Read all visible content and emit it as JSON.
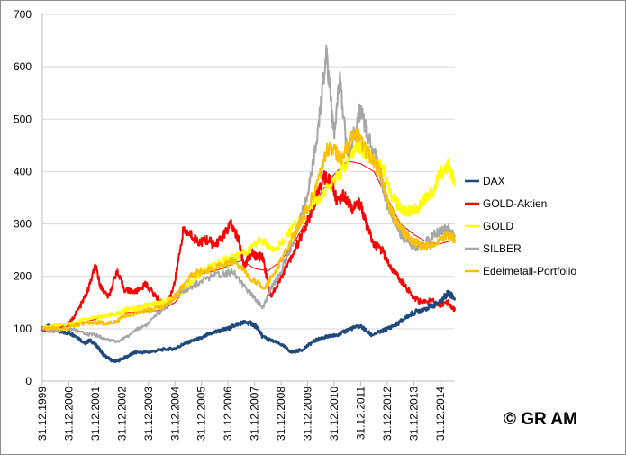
{
  "copyright": "© GR AM",
  "chart_data": {
    "type": "line",
    "title": "",
    "xlabel": "",
    "ylabel": "",
    "ylim": [
      0,
      700
    ],
    "yticks": [
      0,
      100,
      200,
      300,
      400,
      500,
      600,
      700
    ],
    "grid": true,
    "legend_position": "right",
    "categories": [
      "31.12.1999",
      "31.12.2000",
      "31.12.2001",
      "31.12.2002",
      "31.12.2003",
      "31.12.2004",
      "31.12.2005",
      "31.12.2006",
      "31.12.2007",
      "31.12.2008",
      "31.12.2009",
      "31.12.2010",
      "31.12.2011",
      "31.12.2012",
      "31.12.2013",
      "31.12.2014"
    ],
    "x_end": 15.55,
    "series": [
      {
        "name": "DAX",
        "color": "#1f497d",
        "x": [
          0,
          0.3,
          0.7,
          1,
          1.3,
          1.6,
          1.8,
          2.1,
          2.3,
          2.6,
          2.8,
          3.2,
          3.5,
          4,
          4.5,
          5,
          5.3,
          5.7,
          6,
          6.3,
          6.6,
          7,
          7.3,
          7.6,
          7.9,
          8.1,
          8.3,
          8.6,
          9,
          9.4,
          9.8,
          10.2,
          10.5,
          10.8,
          11,
          11.3,
          11.6,
          12,
          12.4,
          12.8,
          13,
          13.4,
          13.8,
          14.2,
          14.6,
          15,
          15.3,
          15.55
        ],
        "y": [
          100,
          105,
          93,
          92,
          85,
          72,
          78,
          65,
          50,
          40,
          38,
          47,
          55,
          55,
          60,
          62,
          70,
          78,
          82,
          90,
          95,
          100,
          108,
          112,
          110,
          102,
          85,
          78,
          70,
          55,
          60,
          75,
          82,
          85,
          87,
          92,
          100,
          105,
          88,
          95,
          100,
          110,
          125,
          135,
          142,
          150,
          170,
          158
        ]
      },
      {
        "name": "GOLD-Aktien",
        "color": "#ff0000",
        "x": [
          0,
          0.3,
          0.7,
          1,
          1.4,
          1.7,
          2,
          2.2,
          2.5,
          2.8,
          3.1,
          3.5,
          3.9,
          4.3,
          4.7,
          5,
          5.3,
          5.6,
          5.9,
          6.2,
          6.5,
          6.8,
          7.1,
          7.4,
          7.6,
          7.9,
          8.1,
          8.3,
          8.6,
          9,
          9.4,
          9.8,
          10.2,
          10.6,
          10.9,
          11.1,
          11.4,
          11.7,
          12,
          12.2,
          12.5,
          12.8,
          13.1,
          13.4,
          13.7,
          14,
          14.3,
          14.7,
          15,
          15.3,
          15.55
        ],
        "y": [
          100,
          95,
          100,
          108,
          140,
          170,
          220,
          180,
          160,
          210,
          175,
          170,
          185,
          160,
          145,
          190,
          285,
          280,
          265,
          270,
          260,
          275,
          300,
          270,
          220,
          245,
          235,
          240,
          160,
          200,
          240,
          280,
          330,
          390,
          380,
          345,
          355,
          330,
          340,
          300,
          260,
          250,
          220,
          200,
          180,
          160,
          150,
          155,
          145,
          150,
          135
        ]
      },
      {
        "name": "GOLD",
        "color": "#ffff00",
        "x": [
          0,
          0.4,
          0.8,
          1.2,
          1.6,
          2,
          2.4,
          2.8,
          3.2,
          3.6,
          4,
          4.4,
          4.8,
          5.2,
          5.5,
          5.8,
          6.2,
          6.6,
          7,
          7.4,
          7.8,
          8.2,
          8.6,
          9,
          9.4,
          9.8,
          10.2,
          10.6,
          11,
          11.4,
          11.7,
          12,
          12.3,
          12.6,
          12.9,
          13.2,
          13.5,
          13.8,
          14.1,
          14.4,
          14.7,
          15,
          15.3,
          15.55
        ],
        "y": [
          100,
          105,
          108,
          110,
          118,
          122,
          125,
          128,
          138,
          140,
          145,
          150,
          155,
          165,
          180,
          200,
          215,
          225,
          235,
          240,
          250,
          270,
          255,
          260,
          290,
          310,
          340,
          360,
          380,
          410,
          440,
          450,
          430,
          420,
          400,
          350,
          330,
          325,
          330,
          345,
          360,
          395,
          410,
          380
        ]
      },
      {
        "name": "SILBER",
        "color": "#a6a6a6",
        "x": [
          0,
          0.4,
          0.8,
          1.2,
          1.6,
          2,
          2.4,
          2.8,
          3.2,
          3.6,
          4,
          4.4,
          4.8,
          5.2,
          5.6,
          6,
          6.4,
          6.8,
          7.2,
          7.6,
          8,
          8.3,
          8.6,
          9,
          9.4,
          9.8,
          10.1,
          10.4,
          10.7,
          10.9,
          11,
          11.2,
          11.5,
          11.8,
          12,
          12.2,
          12.5,
          12.8,
          13.1,
          13.4,
          13.7,
          14,
          14.3,
          14.6,
          15,
          15.3,
          15.55
        ],
        "y": [
          100,
          95,
          100,
          98,
          90,
          88,
          80,
          75,
          85,
          100,
          110,
          130,
          150,
          170,
          180,
          190,
          200,
          205,
          210,
          180,
          160,
          140,
          175,
          210,
          260,
          320,
          380,
          480,
          630,
          520,
          470,
          580,
          430,
          480,
          520,
          480,
          440,
          380,
          320,
          290,
          270,
          255,
          260,
          270,
          290,
          290,
          275
        ]
      },
      {
        "name": "Edelmetall-Portfolio",
        "color": "#ffc000",
        "x": [
          0,
          0.4,
          0.8,
          1.2,
          1.6,
          2,
          2.4,
          2.8,
          3.2,
          3.6,
          4,
          4.4,
          4.8,
          5.2,
          5.6,
          6,
          6.4,
          6.8,
          7.2,
          7.6,
          8,
          8.4,
          8.8,
          9.2,
          9.6,
          10,
          10.4,
          10.7,
          11,
          11.3,
          11.6,
          11.9,
          12.2,
          12.5,
          12.8,
          13.1,
          13.4,
          13.7,
          14,
          14.3,
          14.6,
          15,
          15.3,
          15.55
        ],
        "y": [
          100,
          102,
          100,
          105,
          110,
          112,
          110,
          115,
          125,
          130,
          135,
          140,
          150,
          175,
          200,
          210,
          215,
          220,
          230,
          210,
          190,
          180,
          210,
          250,
          290,
          330,
          380,
          440,
          440,
          420,
          460,
          470,
          440,
          420,
          390,
          330,
          300,
          280,
          265,
          260,
          255,
          270,
          280,
          270
        ]
      },
      {
        "name": "Trend",
        "color": "#ff0000",
        "legend": false,
        "x": [
          0,
          0.5,
          1,
          1.5,
          2,
          2.5,
          3,
          3.5,
          4,
          4.5,
          5,
          5.5,
          6,
          6.5,
          7,
          7.5,
          8,
          8.5,
          9,
          9.5,
          10,
          10.5,
          11,
          11.5,
          12,
          12.5,
          13,
          13.5,
          14,
          14.5,
          15,
          15.55
        ],
        "y": [
          100,
          102,
          105,
          112,
          118,
          125,
          130,
          132,
          133,
          135,
          150,
          185,
          205,
          210,
          220,
          230,
          215,
          210,
          230,
          265,
          310,
          360,
          395,
          420,
          415,
          400,
          350,
          300,
          280,
          265,
          262,
          270
        ]
      }
    ]
  }
}
